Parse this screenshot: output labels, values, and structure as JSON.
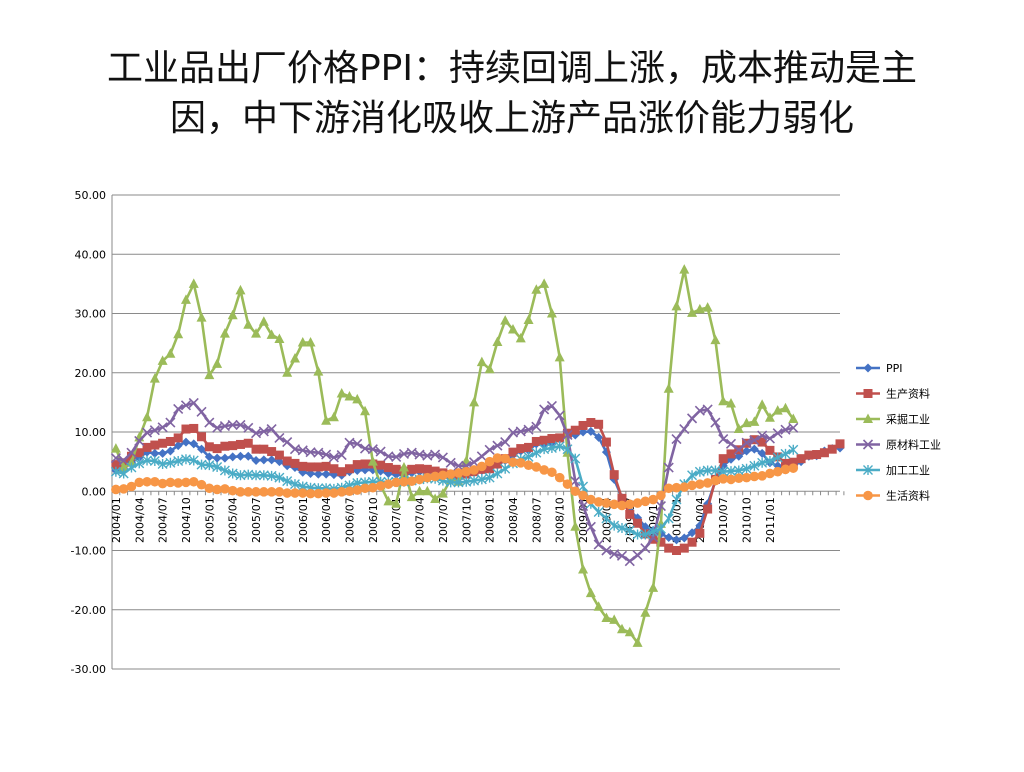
{
  "title": {
    "line1": "工业品出厂价格PPI：持续回调上涨，成本推动是主",
    "line2": "因，中下游消化吸收上游产品涨价能力弱化"
  },
  "chart_data": {
    "type": "line",
    "title": "",
    "xlabel": "",
    "ylabel": "",
    "ylim": [
      -30,
      50
    ],
    "y_ticks": [
      "50.00",
      "40.00",
      "30.00",
      "20.00",
      "10.00",
      "0.00",
      "-10.00",
      "-20.00",
      "-30.00"
    ],
    "y_tick_values": [
      50,
      40,
      30,
      20,
      10,
      0,
      -10,
      -20,
      -30
    ],
    "grid": "horizontal",
    "legend_position": "right",
    "x_start": "2004/01",
    "x_tick_labels": [
      "2004/01",
      "2004/04",
      "2004/07",
      "2004/10",
      "2005/01",
      "2005/04",
      "2005/07",
      "2005/10",
      "2006/01",
      "2006/04",
      "2006/07",
      "2006/10",
      "2007/01",
      "2007/04",
      "2007/07",
      "2007/10",
      "2008/01",
      "2008/04",
      "2008/07",
      "2008/10",
      "2009/01",
      "2009/04",
      "2009/07",
      "2009/10",
      "2010/01",
      "2010/04",
      "2010/07",
      "2010/10",
      "2011/01"
    ],
    "series": [
      {
        "name": "PPI",
        "color": "#4472c4",
        "marker": "diamond",
        "values": [
          3.5,
          3.8,
          4.9,
          5.7,
          6.6,
          6.4,
          6.4,
          6.8,
          7.7,
          8.3,
          8.0,
          7.1,
          5.8,
          5.6,
          5.6,
          5.8,
          5.9,
          5.9,
          5.2,
          5.3,
          5.3,
          5.0,
          4.3,
          4.0,
          3.2,
          3.0,
          2.9,
          2.9,
          2.8,
          2.7,
          3.3,
          3.5,
          3.6,
          3.6,
          3.4,
          3.0,
          2.8,
          2.7,
          3.1,
          3.3,
          3.3,
          3.1,
          2.9,
          2.8,
          2.7,
          2.9,
          3.2,
          3.5,
          3.6,
          4.4,
          5.2,
          6.1,
          6.8,
          6.9,
          8.0,
          8.0,
          8.2,
          8.8,
          9.3,
          9.5,
          10.0,
          10.1,
          9.1,
          6.6,
          2.0,
          -1.1,
          -3.3,
          -4.5,
          -6.0,
          -6.6,
          -7.2,
          -7.8,
          -8.2,
          -7.9,
          -7.0,
          -5.8,
          -2.1,
          1.7,
          4.3,
          5.4,
          5.9,
          6.8,
          7.1,
          6.4,
          4.8,
          4.3,
          3.6,
          4.3,
          5.0,
          5.9,
          6.0,
          6.8,
          7.2,
          7.3
        ]
      },
      {
        "name": "生产资料",
        "color": "#c0504d",
        "marker": "square",
        "values": [
          4.5,
          4.8,
          5.9,
          6.5,
          7.4,
          7.8,
          8.1,
          8.4,
          9.0,
          10.5,
          10.6,
          9.2,
          7.5,
          7.2,
          7.6,
          7.7,
          7.9,
          8.1,
          7.1,
          7.1,
          6.7,
          6.1,
          5.1,
          4.7,
          4.2,
          4.1,
          4.1,
          4.2,
          3.8,
          3.3,
          3.8,
          4.5,
          4.6,
          4.6,
          4.4,
          4.0,
          3.7,
          3.4,
          3.7,
          3.8,
          3.7,
          3.4,
          3.1,
          2.8,
          2.7,
          2.9,
          3.3,
          3.7,
          3.8,
          4.6,
          5.5,
          6.6,
          7.2,
          7.4,
          8.4,
          8.6,
          8.9,
          9.0,
          9.8,
          10.3,
          11.1,
          11.6,
          11.3,
          8.3,
          2.8,
          -1.2,
          -3.9,
          -5.4,
          -7.2,
          -8.1,
          -8.6,
          -9.6,
          -10.0,
          -9.6,
          -8.6,
          -7.1,
          -3.0,
          2.0,
          5.5,
          6.3,
          7.0,
          8.1,
          8.7,
          8.3,
          6.9,
          5.8,
          4.7,
          4.9,
          5.5,
          6.1,
          6.2,
          6.5,
          7.1,
          8.0
        ]
      },
      {
        "name": "采掘工业",
        "color": "#9bbb59",
        "marker": "triangle",
        "values": [
          7.2,
          4.0,
          4.8,
          9.1,
          12.5,
          19.0,
          22.0,
          23.2,
          26.5,
          32.3,
          35.0,
          29.3,
          19.6,
          21.5,
          26.6,
          29.7,
          33.9,
          28.1,
          26.6,
          28.6,
          26.4,
          25.7,
          20.0,
          22.4,
          25.1,
          25.1,
          20.2,
          11.9,
          12.5,
          16.5,
          16.0,
          15.5,
          13.5,
          5.0,
          1.0,
          -1.7,
          -2.1,
          4.0,
          -1.0,
          0.0,
          0.0,
          -1.3,
          -0.4,
          2.0,
          1.6,
          5.1,
          15.0,
          21.8,
          20.6,
          25.2,
          28.8,
          27.3,
          25.8,
          28.9,
          34.0,
          35.0,
          30.0,
          22.6,
          6.5,
          -6.0,
          -13.2,
          -17.2,
          -19.5,
          -21.4,
          -21.7,
          -23.3,
          -23.8,
          -25.6,
          -20.5,
          -16.3,
          -5.5,
          17.3,
          31.2,
          37.4,
          30.1,
          30.7,
          31.0,
          25.5,
          15.2,
          14.8,
          10.5,
          11.5,
          11.7,
          14.6,
          12.4,
          13.6,
          14.0,
          12.2
        ]
      },
      {
        "name": "原材料工业",
        "color": "#8064a2",
        "marker": "x",
        "values": [
          5.6,
          5.2,
          6.5,
          8.5,
          9.9,
          10.3,
          10.8,
          11.6,
          13.9,
          14.5,
          14.9,
          13.4,
          11.6,
          10.7,
          11.0,
          11.2,
          11.2,
          10.7,
          9.8,
          10.1,
          10.5,
          9.0,
          8.3,
          7.1,
          6.9,
          6.6,
          6.5,
          6.2,
          5.7,
          6.1,
          8.2,
          8.0,
          7.2,
          7.1,
          6.7,
          5.9,
          5.8,
          6.3,
          6.5,
          6.2,
          6.0,
          6.2,
          5.7,
          4.8,
          4.3,
          4.3,
          4.9,
          5.9,
          7.0,
          7.7,
          8.3,
          9.9,
          10.1,
          10.4,
          10.9,
          13.8,
          14.4,
          12.8,
          9.5,
          1.7,
          -2.5,
          -6.0,
          -9.0,
          -10.0,
          -10.6,
          -10.9,
          -11.8,
          -10.8,
          -9.6,
          -7.8,
          -2.5,
          4.0,
          8.8,
          10.5,
          12.3,
          13.6,
          13.8,
          11.6,
          8.8,
          8.0,
          7.0,
          8.2,
          8.6,
          9.4,
          8.9,
          9.8,
          10.4,
          10.7
        ]
      },
      {
        "name": "加工工业",
        "color": "#4bacc6",
        "marker": "asterisk",
        "values": [
          3.3,
          3.0,
          4.0,
          4.7,
          5.2,
          5.1,
          4.6,
          4.8,
          5.1,
          5.4,
          5.2,
          4.5,
          4.4,
          4.1,
          3.5,
          3.0,
          2.7,
          2.8,
          2.7,
          2.7,
          2.6,
          2.3,
          1.7,
          1.2,
          0.8,
          0.6,
          0.5,
          0.5,
          0.4,
          0.6,
          1.0,
          1.4,
          1.5,
          1.6,
          1.6,
          1.6,
          1.6,
          1.6,
          1.8,
          2.0,
          2.2,
          2.1,
          1.8,
          1.5,
          1.5,
          1.6,
          1.8,
          2.0,
          2.3,
          3.0,
          3.8,
          4.7,
          5.4,
          5.8,
          6.5,
          7.1,
          7.3,
          7.6,
          7.1,
          5.5,
          0.8,
          -2.1,
          -3.5,
          -4.6,
          -5.8,
          -6.2,
          -6.6,
          -7.3,
          -7.3,
          -6.8,
          -6.3,
          -4.6,
          -1.4,
          1.2,
          2.7,
          3.3,
          3.5,
          3.5,
          3.3,
          3.4,
          3.5,
          3.8,
          4.3,
          4.8,
          5.1,
          5.7,
          6.3,
          7.0
        ]
      },
      {
        "name": "生活资料",
        "color": "#f79646",
        "marker": "circle",
        "values": [
          0.3,
          0.4,
          0.8,
          1.5,
          1.6,
          1.6,
          1.3,
          1.5,
          1.4,
          1.5,
          1.6,
          1.1,
          0.5,
          0.3,
          0.4,
          0.1,
          -0.1,
          -0.1,
          -0.1,
          -0.1,
          -0.1,
          -0.1,
          -0.3,
          -0.3,
          -0.3,
          -0.4,
          -0.4,
          -0.3,
          -0.3,
          -0.1,
          0.0,
          0.2,
          0.5,
          0.6,
          0.9,
          1.2,
          1.5,
          1.6,
          1.7,
          2.0,
          2.3,
          2.5,
          2.7,
          2.9,
          3.1,
          3.3,
          3.6,
          4.2,
          5.0,
          5.6,
          5.5,
          4.9,
          4.8,
          4.4,
          4.1,
          3.6,
          3.2,
          2.3,
          1.2,
          0.0,
          -0.7,
          -1.4,
          -1.8,
          -2.0,
          -2.2,
          -2.4,
          -2.2,
          -2.0,
          -1.7,
          -1.4,
          -0.7,
          0.5,
          0.6,
          0.7,
          1.0,
          1.2,
          1.4,
          1.8,
          2.1,
          2.0,
          2.2,
          2.3,
          2.5,
          2.6,
          3.0,
          3.3,
          3.7,
          3.9
        ]
      }
    ]
  }
}
